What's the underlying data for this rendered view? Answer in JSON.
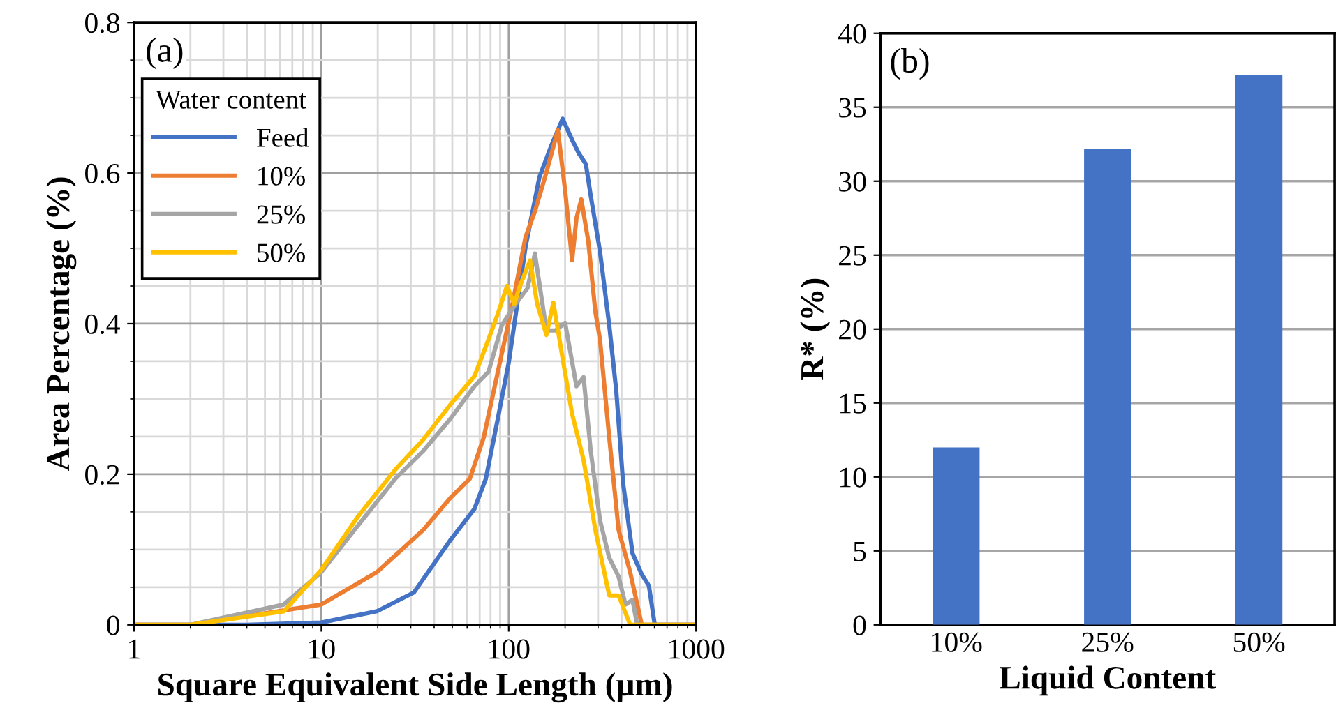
{
  "chart_data": [
    {
      "type": "line",
      "xlabel": "Square Equivalent Side Length (µm)",
      "ylabel": "Area Percentage (%)",
      "legend_title": "Water content",
      "legend": "top left",
      "log": "x",
      "grid": true,
      "marker": "none",
      "line_style": "solid",
      "xlim": [
        1,
        1000
      ],
      "xticks": [
        1,
        10,
        100,
        1000
      ],
      "ylim": [
        0,
        0.8
      ],
      "yticks": [
        0,
        0.2,
        0.4,
        0.6,
        0.8
      ],
      "annotations": [
        "(a)"
      ],
      "series": [
        {
          "name": "Feed",
          "color": "#4472c4",
          "x": [
            1,
            4,
            10,
            19.8,
            31.2,
            49,
            65.6,
            75.5,
            87.5,
            100,
            123,
            146,
            168,
            194,
            218,
            237,
            258,
            274,
            307,
            344,
            375,
            408,
            458,
            513,
            560,
            602,
            1000
          ],
          "values": [
            0,
            0,
            0.003,
            0.018,
            0.043,
            0.113,
            0.154,
            0.194,
            0.274,
            0.348,
            0.502,
            0.595,
            0.635,
            0.672,
            0.644,
            0.626,
            0.612,
            0.57,
            0.496,
            0.398,
            0.311,
            0.188,
            0.095,
            0.067,
            0.052,
            0,
            0
          ]
        },
        {
          "name": "10%",
          "color": "#ed7d31",
          "x": [
            1,
            2,
            10,
            19.8,
            35,
            49,
            62,
            73.6,
            87.5,
            104,
            123,
            138,
            159,
            183,
            200,
            218,
            230,
            244,
            266,
            290,
            307,
            344,
            386,
            445,
            513,
            1000
          ],
          "values": [
            0,
            0,
            0.027,
            0.07,
            0.126,
            0.169,
            0.194,
            0.249,
            0.336,
            0.422,
            0.515,
            0.549,
            0.601,
            0.657,
            0.577,
            0.484,
            0.54,
            0.565,
            0.509,
            0.416,
            0.379,
            0.249,
            0.126,
            0.07,
            0,
            0
          ]
        },
        {
          "name": "25%",
          "color": "#a5a5a5",
          "x": [
            1,
            2,
            6.3,
            10,
            15.7,
            24.8,
            35,
            49,
            65.6,
            78,
            92,
            110,
            126,
            138,
            159,
            178,
            200,
            230,
            251,
            274,
            307,
            344,
            386,
            420,
            458,
            485,
            1000
          ],
          "values": [
            0,
            0,
            0.027,
            0.07,
            0.132,
            0.194,
            0.231,
            0.274,
            0.317,
            0.336,
            0.398,
            0.428,
            0.447,
            0.493,
            0.391,
            0.391,
            0.401,
            0.317,
            0.329,
            0.231,
            0.139,
            0.089,
            0.064,
            0.027,
            0.033,
            0,
            0
          ]
        },
        {
          "name": "50%",
          "color": "#ffc000",
          "x": [
            1,
            2,
            6.3,
            10,
            15.7,
            24.8,
            35,
            49,
            65.6,
            78,
            87.5,
            98,
            107,
            116,
            130,
            142,
            159,
            173,
            194,
            218,
            251,
            290,
            344,
            386,
            445,
            1000
          ],
          "values": [
            0,
            0,
            0.018,
            0.073,
            0.144,
            0.206,
            0.246,
            0.293,
            0.33,
            0.379,
            0.413,
            0.45,
            0.426,
            0.453,
            0.484,
            0.426,
            0.385,
            0.428,
            0.354,
            0.28,
            0.219,
            0.126,
            0.039,
            0.039,
            0,
            0
          ]
        }
      ]
    },
    {
      "type": "bar",
      "xlabel": "Liquid Content",
      "ylabel": "R* (%)",
      "grid": "y",
      "categories": [
        "10%",
        "25%",
        "50%"
      ],
      "values": [
        12,
        32.2,
        37.2
      ],
      "color": "#4472c4",
      "ylim": [
        0,
        40
      ],
      "yticks": [
        0,
        5,
        10,
        15,
        20,
        25,
        30,
        35,
        40
      ],
      "annotations": [
        "(b)"
      ]
    }
  ]
}
